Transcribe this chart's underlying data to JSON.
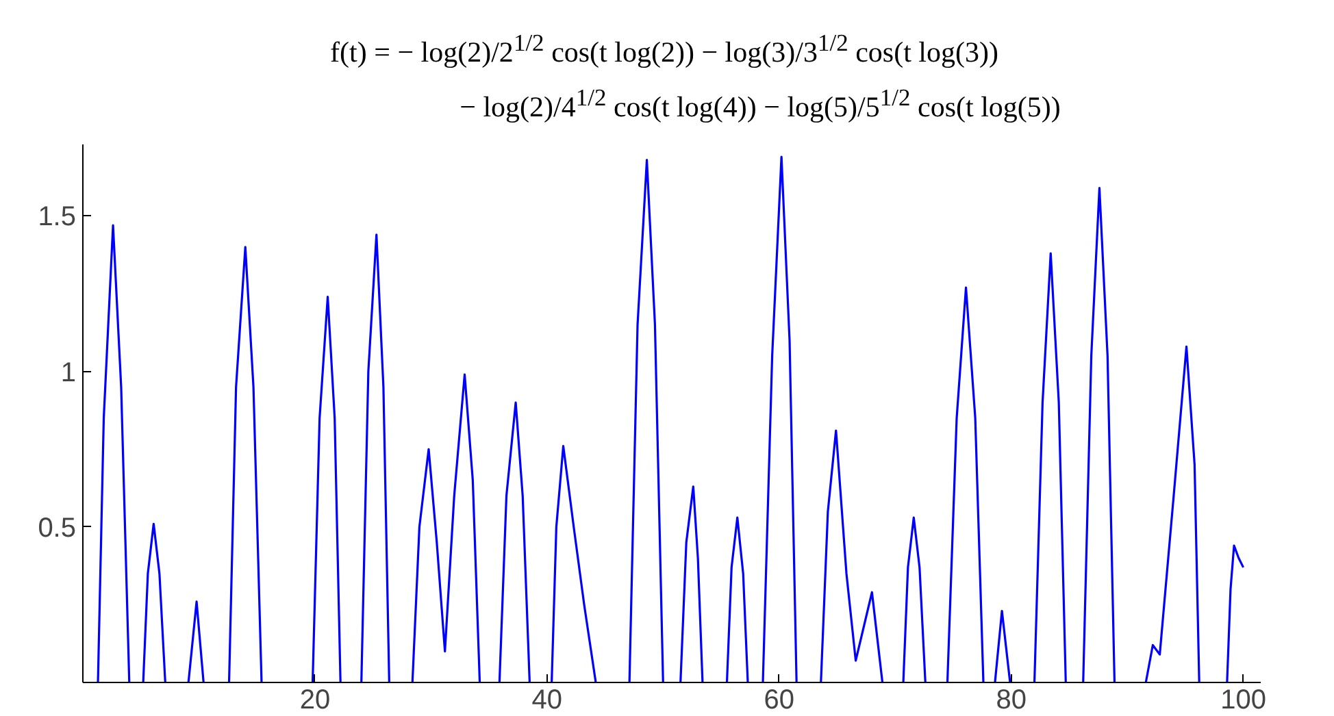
{
  "chart_data": {
    "type": "line",
    "title": "f(t) = − log(2)/2$^{1/2}$ cos(t log(2)) − log(3)/3$^{1/2}$ cos(t log(3))",
    "subtitle": "− log(2)/4$^{1/2}$ cos(t log(4)) − log(5)/5$^{1/2}$ cos(t log(5))",
    "x": [
      1.3,
      1.8,
      2.6,
      3.3,
      4.0,
      4.6,
      5.2,
      5.6,
      6.1,
      6.6,
      7.1,
      8.1,
      9.1,
      9.8,
      10.4,
      11.5,
      12.6,
      13.2,
      14.0,
      14.7,
      15.4,
      17.6,
      19.8,
      20.4,
      21.1,
      21.7,
      22.2,
      23.1,
      24.0,
      24.6,
      25.3,
      25.9,
      26.4,
      27.4,
      28.4,
      29.0,
      29.8,
      30.5,
      31.2,
      32.0,
      32.9,
      33.6,
      34.2,
      35.0,
      35.9,
      36.5,
      37.3,
      37.9,
      38.5,
      39.5,
      40.4,
      40.8,
      41.4,
      42.3,
      43.2,
      44.2,
      45.6,
      47.1,
      47.8,
      48.6,
      49.3,
      50.0,
      50.7,
      51.5,
      52.0,
      52.6,
      53.0,
      53.4,
      54.5,
      55.5,
      55.9,
      56.4,
      56.9,
      57.3,
      58.0,
      58.6,
      59.4,
      60.2,
      60.9,
      61.5,
      62.5,
      63.6,
      64.2,
      64.9,
      65.8,
      66.6,
      68.0,
      68.9,
      69.8,
      70.7,
      71.1,
      71.6,
      72.1,
      72.6,
      73.5,
      74.5,
      75.3,
      76.1,
      76.9,
      77.6,
      78.1,
      78.6,
      79.2,
      79.9,
      81.0,
      82.0,
      82.7,
      83.4,
      84.1,
      84.7,
      85.4,
      86.2,
      86.9,
      87.6,
      88.3,
      88.9,
      90.2,
      91.6,
      92.2,
      92.8,
      94.0,
      95.1,
      95.8,
      96.2,
      97.4,
      98.6,
      98.9,
      99.2,
      99.6,
      100
    ],
    "series": [
      {
        "color": "#0000ff",
        "values": [
          0,
          0.85,
          1.47,
          0.95,
          0,
          null,
          0,
          0.35,
          0.51,
          0.35,
          0,
          null,
          0,
          0.26,
          0,
          null,
          0,
          0.95,
          1.4,
          0.95,
          0,
          null,
          0,
          0.85,
          1.24,
          0.85,
          0,
          null,
          0,
          1.0,
          1.44,
          0.95,
          0,
          null,
          0,
          0.5,
          0.75,
          0.45,
          0.1,
          0.6,
          0.99,
          0.65,
          0,
          null,
          0,
          0.6,
          0.9,
          0.6,
          0,
          null,
          0,
          0.5,
          0.76,
          0.5,
          0.25,
          0,
          null,
          0,
          1.15,
          1.68,
          1.15,
          0,
          null,
          0,
          0.45,
          0.63,
          0.4,
          0,
          null,
          0,
          0.37,
          0.53,
          0.35,
          0,
          null,
          0,
          1.05,
          1.69,
          1.1,
          0,
          null,
          0,
          0.55,
          0.81,
          0.35,
          0.07,
          0.29,
          0,
          null,
          0,
          0.37,
          0.53,
          0.37,
          0,
          null,
          0,
          0.85,
          1.27,
          0.85,
          0,
          null,
          0,
          0.23,
          0,
          null,
          0,
          0.9,
          1.38,
          0.9,
          0,
          null,
          0,
          1.05,
          1.59,
          1.05,
          0,
          null,
          0,
          0.12,
          0.09,
          0.6,
          1.08,
          0.7,
          0,
          null,
          0,
          0.3,
          0.44,
          0.4,
          0.37
        ]
      }
    ],
    "xlim": [
      0,
      101.5
    ],
    "ylim": [
      0,
      1.73
    ],
    "xticks": [
      20,
      40,
      60,
      80,
      100
    ],
    "yticks": [
      0.5,
      1,
      1.5
    ],
    "grid": false
  }
}
